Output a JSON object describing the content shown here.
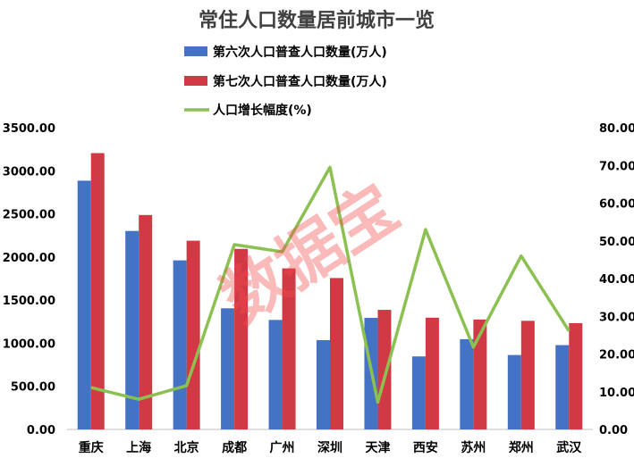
{
  "chart_data": {
    "type": "bar",
    "title": "常住人口数量居前城市一览",
    "categories": [
      "重庆",
      "上海",
      "北京",
      "成都",
      "广州",
      "深圳",
      "天津",
      "西安",
      "苏州",
      "郑州",
      "武汉"
    ],
    "series": [
      {
        "name": "第六次人口普查人口数量(万人)",
        "type": "bar",
        "axis": "left",
        "color": "#4472c4",
        "values": [
          2885,
          2302,
          1961,
          1405,
          1270,
          1036,
          1294,
          847,
          1047,
          863,
          978
        ]
      },
      {
        "name": "第七次人口普查人口数量(万人)",
        "type": "bar",
        "axis": "left",
        "color": "#d13a45",
        "values": [
          3205,
          2487,
          2189,
          2094,
          1868,
          1756,
          1387,
          1296,
          1275,
          1260,
          1233
        ]
      },
      {
        "name": "人口增长幅度(%)",
        "type": "line",
        "axis": "right",
        "color": "#8cc152",
        "values": [
          11.1,
          8.0,
          11.6,
          49.0,
          47.1,
          69.5,
          7.2,
          53.0,
          21.8,
          46.0,
          26.1
        ]
      }
    ],
    "y_left": {
      "min": 0,
      "max": 3500,
      "step": 500,
      "ticks": [
        "0.00",
        "500.00",
        "1000.00",
        "1500.00",
        "2000.00",
        "2500.00",
        "3000.00",
        "3500.00"
      ]
    },
    "y_right": {
      "min": 0,
      "max": 80,
      "step": 10,
      "ticks": [
        "0.00",
        "10.00",
        "20.00",
        "30.00",
        "40.00",
        "50.00",
        "60.00",
        "70.00",
        "80.00"
      ]
    },
    "legend_position": "top",
    "grid": false,
    "watermark": "数据宝"
  }
}
